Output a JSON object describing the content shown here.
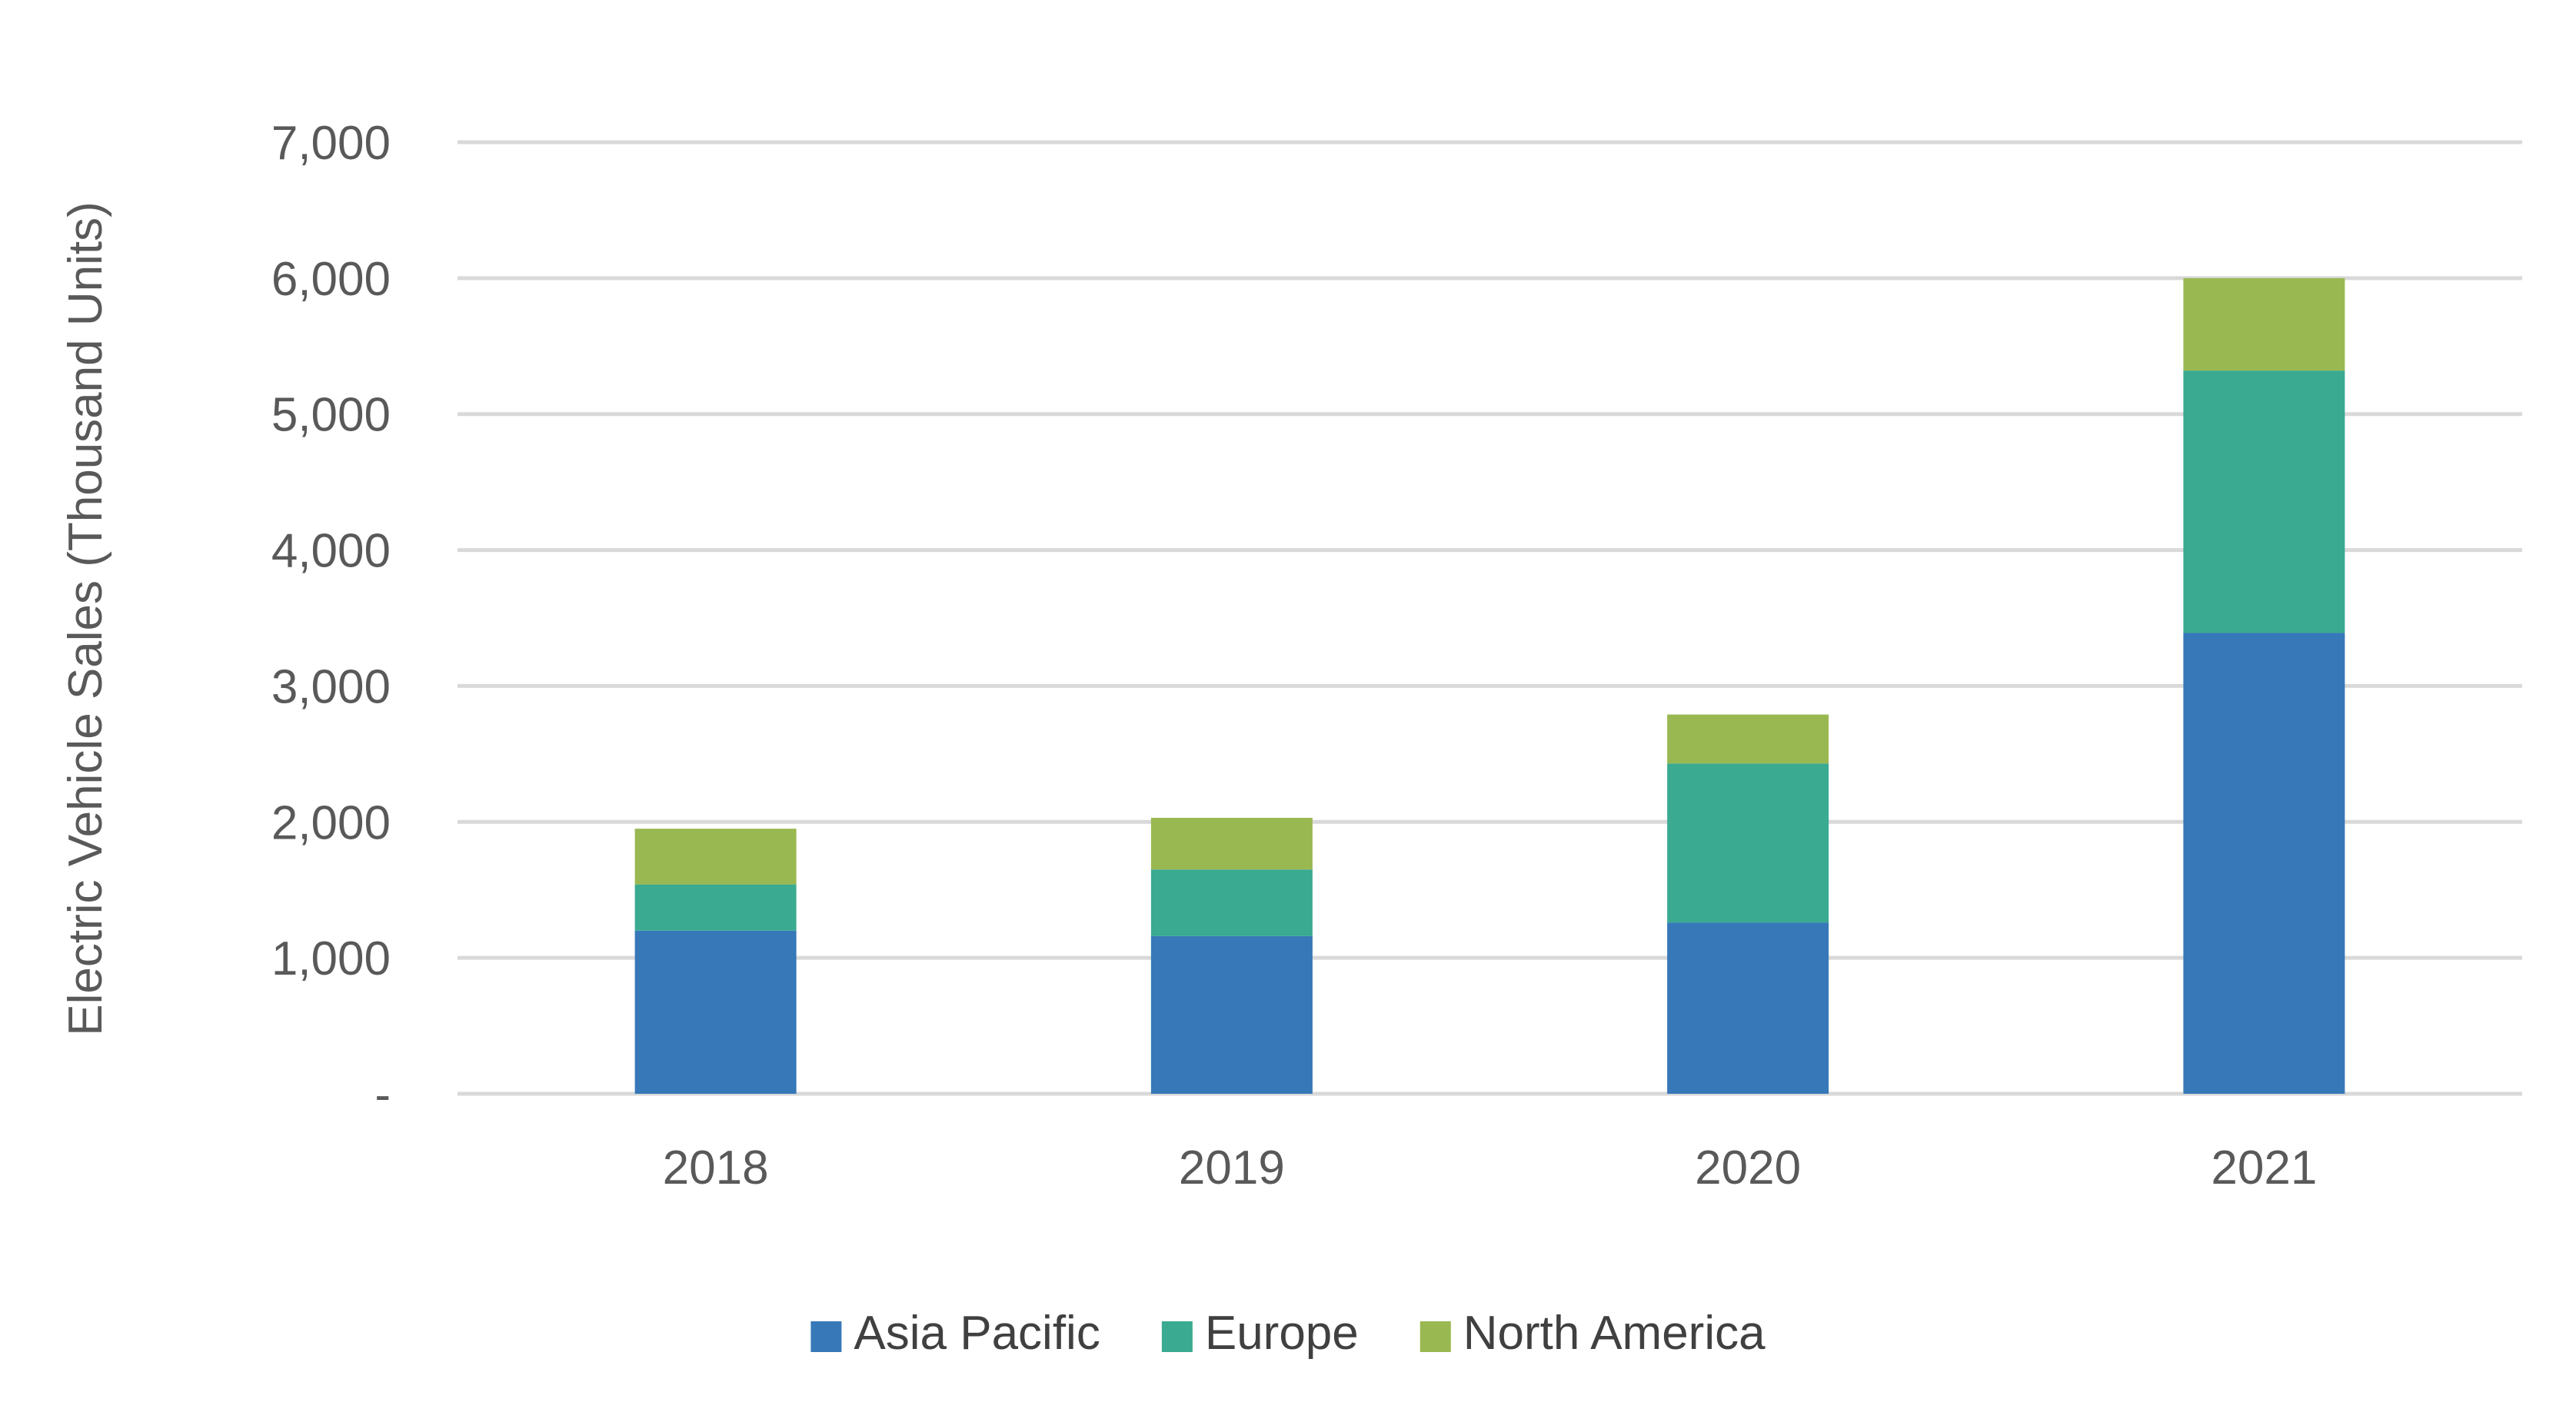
{
  "chart_data": {
    "type": "bar",
    "stacked": true,
    "title": "",
    "xlabel": "",
    "ylabel": "Electric Vehicle Sales (Thousand Units)",
    "categories": [
      "2018",
      "2019",
      "2020",
      "2021"
    ],
    "series": [
      {
        "name": "Asia Pacific",
        "color": "#3778b8",
        "values": [
          1200,
          1160,
          1260,
          3390
        ]
      },
      {
        "name": "Europe",
        "color": "#3aaa91",
        "values": [
          340,
          490,
          1170,
          1930
        ]
      },
      {
        "name": "North America",
        "color": "#9ab851",
        "values": [
          410,
          380,
          360,
          680
        ]
      }
    ],
    "ylim": [
      0,
      7000
    ],
    "yticks": [
      0,
      1000,
      2000,
      3000,
      4000,
      5000,
      6000,
      7000
    ],
    "ytick_labels": [
      "-",
      "1,000",
      "2,000",
      "3,000",
      "4,000",
      "5,000",
      "6,000",
      "7,000"
    ],
    "grid": true,
    "legend_position": "bottom-center"
  }
}
